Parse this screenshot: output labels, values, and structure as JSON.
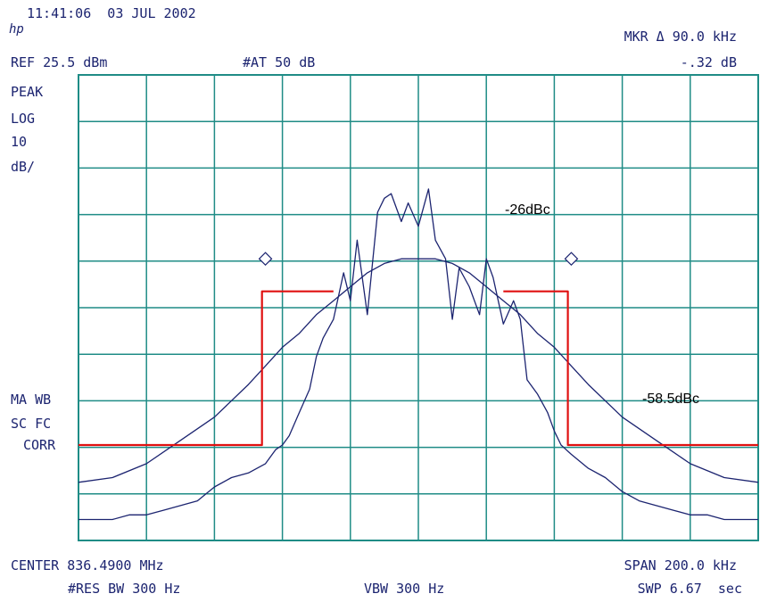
{
  "header": {
    "timestamp": "11:41:06  03 JUL 2002",
    "ref_level": "REF 25.5 dBm",
    "attenuation": "#AT 50 dB",
    "marker_label": "MKR Δ 90.0 kHz",
    "marker_value": "-.32 dB"
  },
  "left_panel": {
    "detector": "PEAK",
    "scale_type": "LOG",
    "scale_value": "10",
    "scale_unit": "dB/",
    "status_line1": "MA WB",
    "status_line2": "SC FC",
    "status_line3": "CORR"
  },
  "footer": {
    "center_freq": "CENTER 836.4900 MHz",
    "span": "SPAN 200.0 kHz",
    "res_bw": "#RES BW 300 Hz",
    "vbw": "VBW 300 Hz",
    "sweep": "SWP 6.67  sec"
  },
  "annotations": {
    "inner_mask": "-26dBc",
    "outer_mask": "-58.5dBc"
  },
  "colors": {
    "grid": "#1f8c86",
    "trace": "#1c2470",
    "mask": "#e01010",
    "text": "#1c2470"
  },
  "chart_data": {
    "type": "line",
    "title": "",
    "xlabel": "",
    "ylabel": "",
    "x_center_mhz": 836.49,
    "x_span_khz": 200,
    "xlim_khz": [
      -100,
      100
    ],
    "ylim_db": [
      -74.5,
      25.5
    ],
    "db_per_div": 10,
    "grid": true,
    "series": [
      {
        "x": [
          -100,
          -90,
          -80,
          -70,
          -60,
          -50,
          -45,
          -40,
          -35,
          -30,
          -25,
          -20,
          -15,
          -10,
          -5,
          0,
          5,
          10,
          15,
          20,
          25,
          30,
          35,
          40,
          45,
          50,
          60,
          70,
          80,
          90,
          100
        ],
        "y": [
          -62,
          -61,
          -58,
          -53,
          -48,
          -41,
          -37,
          -33,
          -30,
          -26,
          -23,
          -20,
          -17,
          -15,
          -14,
          -14,
          -14,
          -15,
          -17,
          -20,
          -23,
          -26,
          -30,
          -33,
          -37,
          -41,
          -48,
          -53,
          -58,
          -61,
          -62
        ]
      },
      {
        "x": [
          -100,
          -95,
          -90,
          -85,
          -80,
          -75,
          -70,
          -65,
          -60,
          -55,
          -50,
          -45,
          -42,
          -40,
          -38,
          -35,
          -32,
          -30,
          -28,
          -25,
          -22,
          -20,
          -18,
          -15,
          -12,
          -10,
          -8,
          -5,
          -3,
          0,
          3,
          5,
          8,
          10,
          12,
          15,
          18,
          20,
          22,
          25,
          28,
          30,
          32,
          35,
          38,
          40,
          42,
          45,
          50,
          55,
          60,
          65,
          70,
          75,
          80,
          85,
          90,
          95,
          100
        ],
        "y": [
          -70,
          -70,
          -70,
          -69,
          -69,
          -68,
          -67,
          -66,
          -63,
          -61,
          -60,
          -58,
          -55,
          -54,
          -52,
          -47,
          -42,
          -35,
          -31,
          -27,
          -17,
          -23,
          -10,
          -26,
          -4,
          -1,
          0,
          -6,
          -2,
          -7,
          1,
          -10,
          -14,
          -27,
          -16,
          -20,
          -26,
          -14,
          -18,
          -28,
          -23,
          -27,
          -40,
          -43,
          -47,
          -51,
          -54,
          -56,
          -59,
          -61,
          -64,
          -66,
          -67,
          -68,
          -69,
          -69,
          -70,
          -70,
          -70
        ]
      },
      {
        "x": [
          -100,
          -46,
          -46,
          -25
        ],
        "y": [
          -54,
          -54,
          -21,
          -21
        ]
      },
      {
        "x": [
          25,
          44,
          44,
          100
        ],
        "y": [
          -21,
          -21,
          -54,
          -54
        ]
      }
    ],
    "markers": [
      {
        "x": -45,
        "y": -14
      },
      {
        "x": 45,
        "y": -14
      }
    ],
    "annotations": [
      {
        "text": "-26dBc",
        "x": 23,
        "y": -18.5
      },
      {
        "text": "-58.5dBc",
        "x": 65,
        "y": -51.5
      }
    ]
  }
}
